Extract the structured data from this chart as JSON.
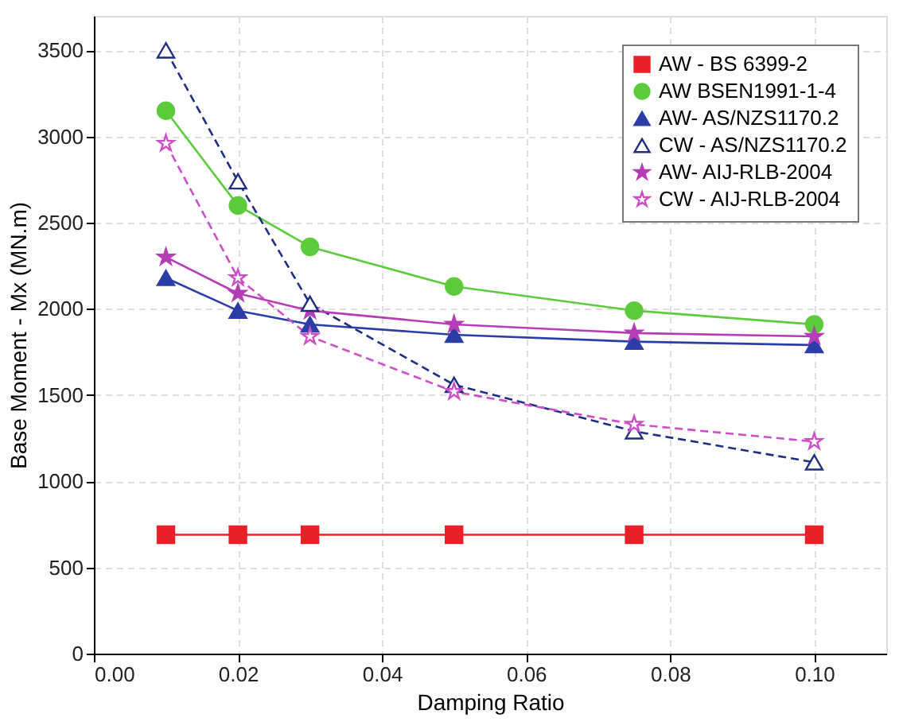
{
  "chart_data": {
    "type": "line",
    "xlabel": "Damping Ratio",
    "ylabel": "Base Moment - Mx (MN.m)",
    "x": [
      0.01,
      0.02,
      0.03,
      0.05,
      0.075,
      0.1
    ],
    "series": [
      {
        "name": "AW - BS 6399-2",
        "color": "#e8202a",
        "marker": "square",
        "line_style": "solid",
        "values": [
          690,
          690,
          690,
          690,
          690,
          690
        ]
      },
      {
        "name": "AW BSEN1991-1-4",
        "color": "#5ccb3c",
        "marker": "circle",
        "line_style": "solid",
        "values": [
          3150,
          2600,
          2360,
          2130,
          1990,
          1910
        ]
      },
      {
        "name": "AW- AS/NZS1170.2",
        "color": "#2b3ea8",
        "marker": "triangle",
        "line_style": "solid",
        "values": [
          2180,
          1990,
          1910,
          1850,
          1810,
          1790
        ]
      },
      {
        "name": "CW - AS/NZS1170.2",
        "color": "#1f2f80",
        "marker": "triangle",
        "line_style": "dashed",
        "values": [
          3500,
          2740,
          2030,
          1560,
          1290,
          1110
        ]
      },
      {
        "name": "AW- AIJ-RLB-2004",
        "color": "#b53db5",
        "marker": "star",
        "line_style": "solid",
        "values": [
          2300,
          2090,
          1990,
          1910,
          1860,
          1840
        ]
      },
      {
        "name": "CW - AIJ-RLB-2004",
        "color": "#cc4fc8",
        "marker": "star",
        "line_style": "dashed",
        "values": [
          2960,
          2180,
          1840,
          1520,
          1330,
          1230
        ]
      }
    ],
    "xlim": [
      0,
      0.11
    ],
    "xticks": [
      {
        "value": 0,
        "label": "0.00"
      },
      0.02,
      0.04,
      0.06,
      0.08,
      {
        "value": 0.1,
        "label": "0.10"
      }
    ],
    "ylim": [
      0,
      3700
    ],
    "yticks": [
      0,
      500,
      1000,
      1500,
      2000,
      2500,
      3000,
      3500
    ],
    "grid": true,
    "legend": "top right"
  }
}
